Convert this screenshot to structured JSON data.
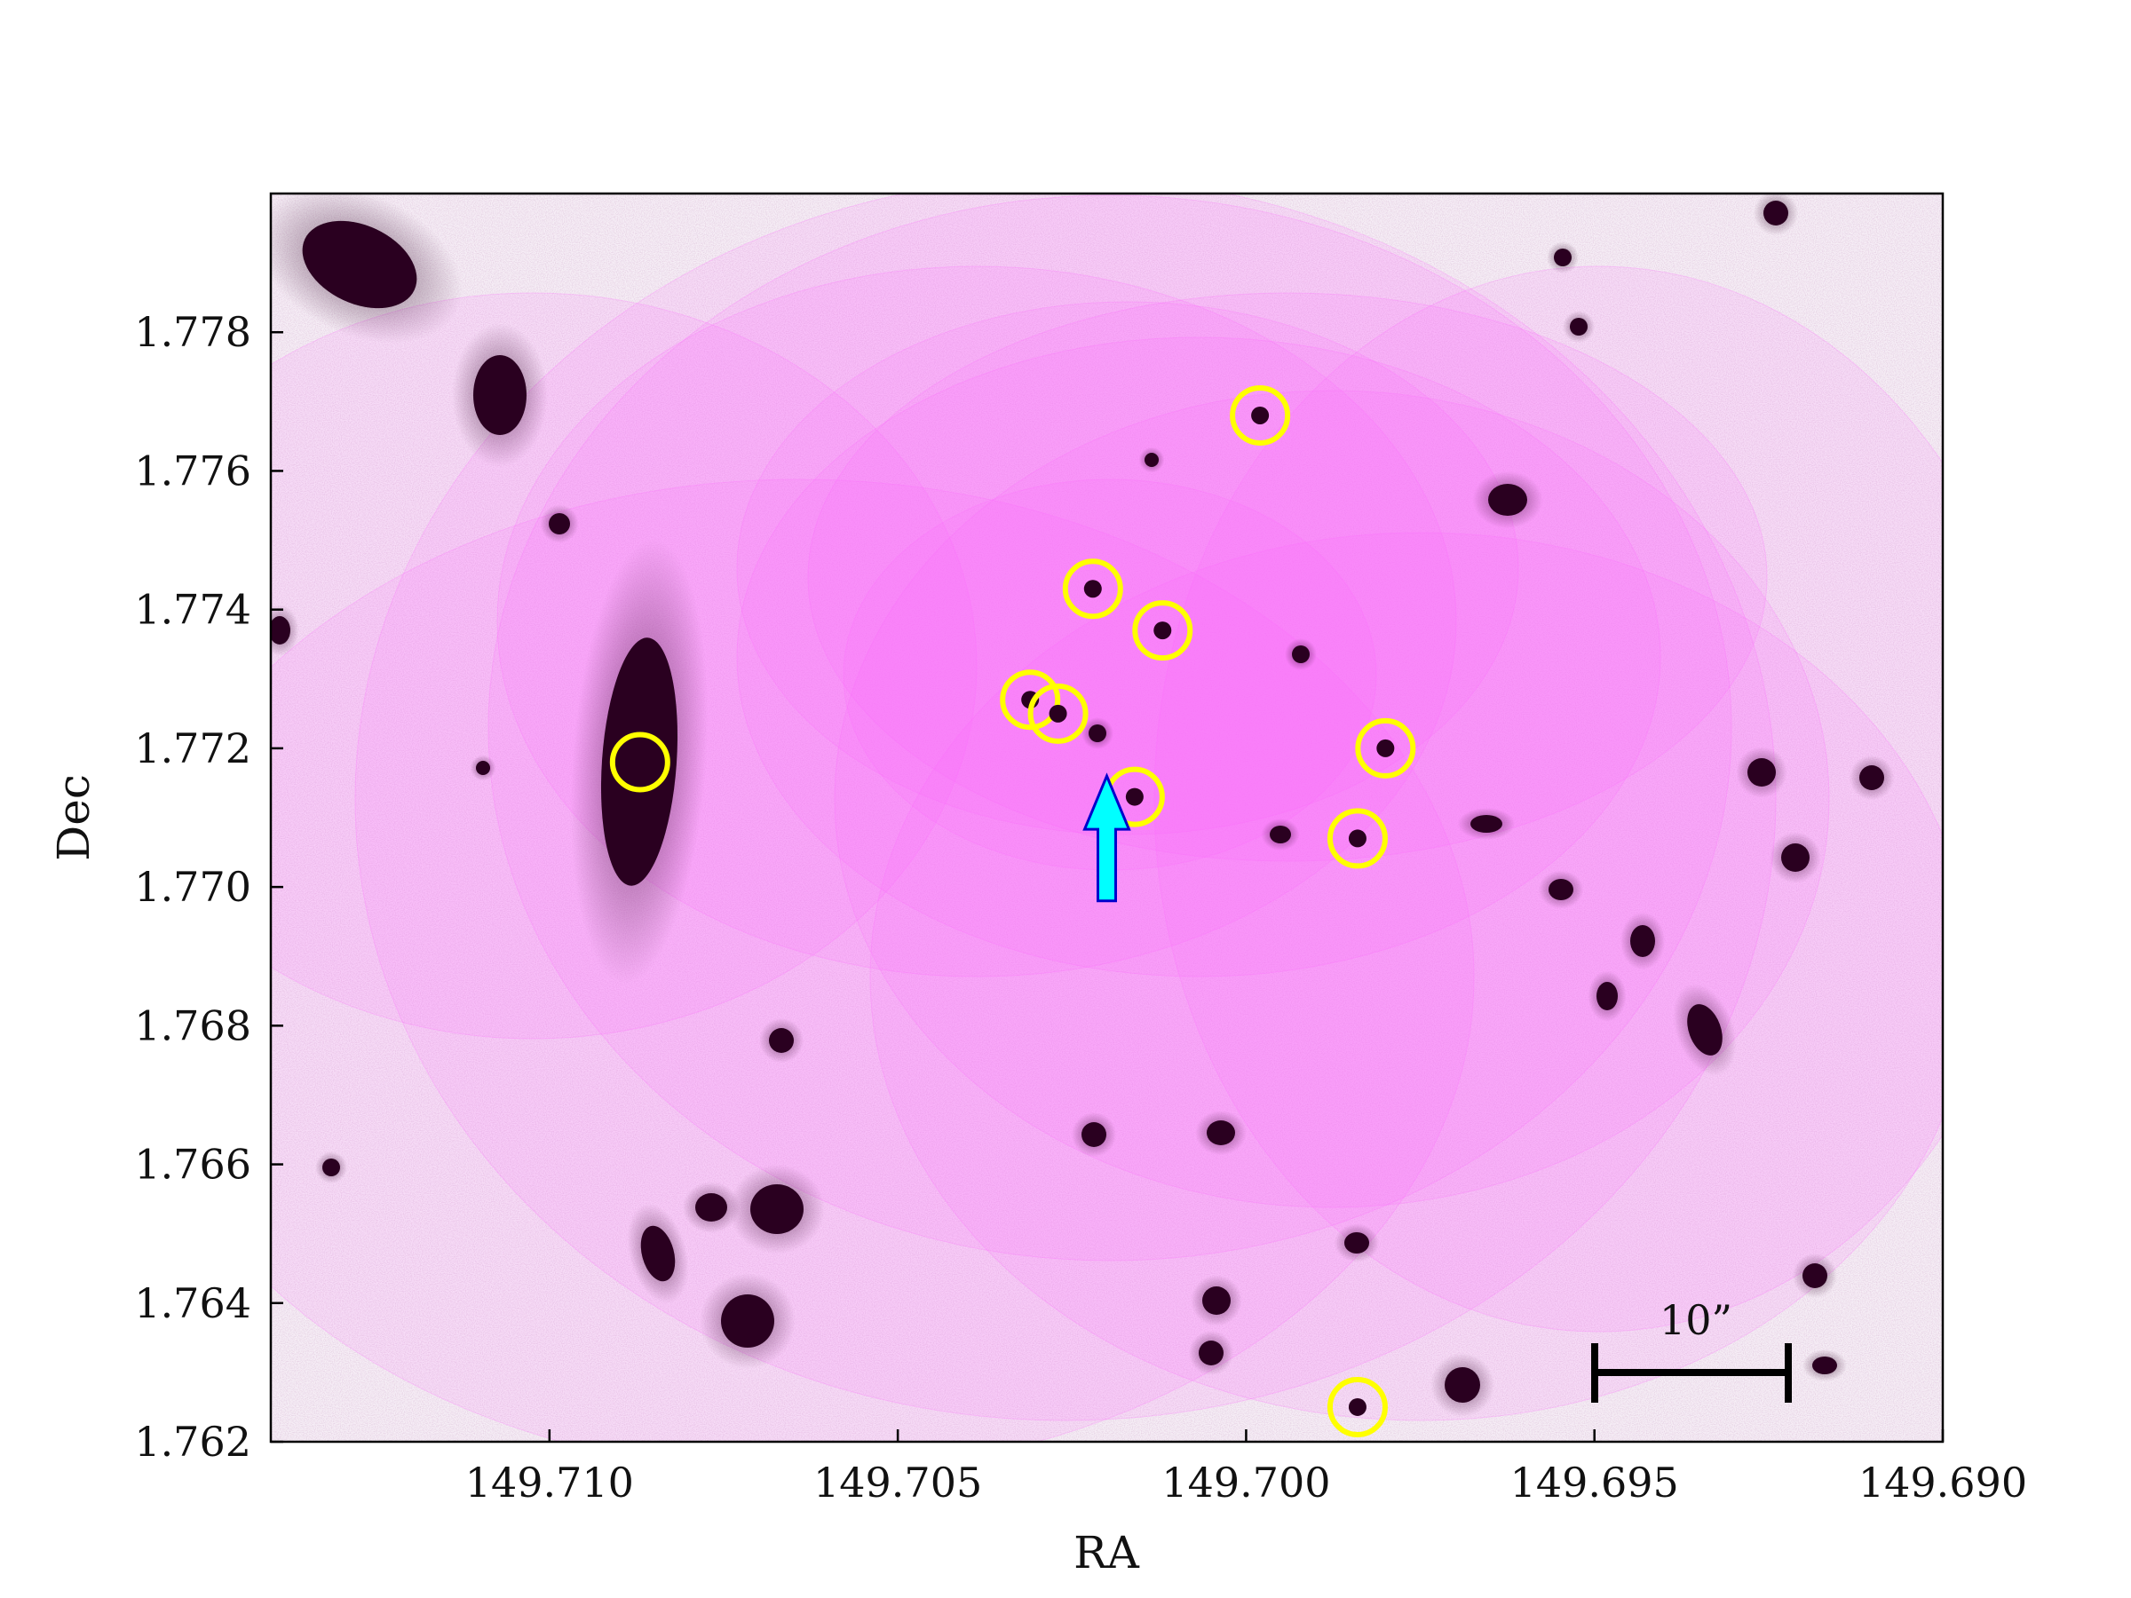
{
  "figure": {
    "xlabel": "RA",
    "ylabel": "Dec",
    "x_range": [
      149.714,
      149.69
    ],
    "y_range": [
      1.762,
      1.78
    ],
    "x_ticks": [
      "149.710",
      "149.705",
      "149.700",
      "149.695",
      "149.690"
    ],
    "y_ticks": [
      "1.762",
      "1.764",
      "1.766",
      "1.768",
      "1.770",
      "1.772",
      "1.774",
      "1.776",
      "1.778"
    ],
    "scale_bar_label": "10”"
  },
  "colors": {
    "overlay": "#ff66ff",
    "marker_circle": "#ffff00",
    "arrow_fill": "#00ffff",
    "arrow_edge": "#0000cc",
    "source": "#2a0020"
  },
  "markers": [
    {
      "ra": 149.7087,
      "dec": 1.7718
    },
    {
      "ra": 149.7022,
      "dec": 1.7743
    },
    {
      "ra": 149.7012,
      "dec": 1.7737
    },
    {
      "ra": 149.7031,
      "dec": 1.7727
    },
    {
      "ra": 149.7027,
      "dec": 1.7725
    },
    {
      "ra": 149.7016,
      "dec": 1.7713
    },
    {
      "ra": 149.6998,
      "dec": 1.7768
    },
    {
      "ra": 149.698,
      "dec": 1.772
    },
    {
      "ra": 149.6984,
      "dec": 1.7707
    },
    {
      "ra": 149.6984,
      "dec": 1.7625
    }
  ],
  "arrow": {
    "ra": 149.702,
    "dec_tip": 1.7716,
    "dec_tail": 1.7698
  }
}
